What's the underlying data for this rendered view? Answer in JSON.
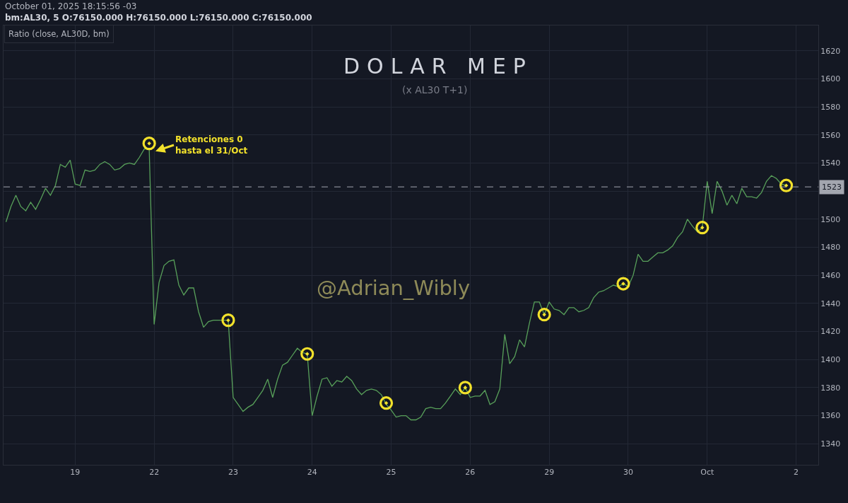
{
  "chart_data": {
    "type": "line",
    "title": "DOLAR MEP",
    "subtitle": "(x AL30 T+1)",
    "annotations": [
      "October 01, 2025 18:15:56 -03",
      "bm:AL30, 5 O:76150.000 H:76150.000 L:76150.000 C:76150.000",
      "Ratio (close, AL30D, bm)",
      "@Adrian_Wibly",
      "Retenciones 0\nhasta el 31/Oct"
    ],
    "categories": [
      null,
      null,
      null,
      null,
      null,
      null,
      null,
      null,
      null,
      null,
      null,
      null,
      null,
      null,
      "19",
      null,
      null,
      null,
      null,
      null,
      null,
      null,
      null,
      null,
      null,
      null,
      null,
      null,
      null,
      null,
      "22",
      null,
      null,
      null,
      null,
      null,
      null,
      null,
      null,
      null,
      null,
      null,
      null,
      null,
      null,
      null,
      "23",
      null,
      null,
      null,
      null,
      null,
      null,
      null,
      null,
      null,
      null,
      null,
      null,
      null,
      null,
      null,
      "24",
      null,
      null,
      null,
      null,
      null,
      null,
      null,
      null,
      null,
      null,
      null,
      null,
      null,
      null,
      null,
      "25",
      null,
      null,
      null,
      null,
      null,
      null,
      null,
      null,
      null,
      null,
      null,
      null,
      null,
      null,
      null,
      "26",
      null,
      null,
      null,
      null,
      null,
      null,
      null,
      null,
      null,
      null,
      null,
      null,
      null,
      null,
      null,
      "29",
      null,
      null,
      null,
      null,
      null,
      null,
      null,
      null,
      null,
      null,
      null,
      null,
      null,
      null,
      null,
      "30",
      null,
      null,
      null,
      null,
      null,
      null,
      null,
      null,
      null,
      null,
      null,
      null,
      null,
      null,
      null,
      "Oct",
      null,
      null,
      null,
      null,
      null,
      null,
      null,
      null,
      null,
      null,
      null,
      null,
      null,
      null,
      null,
      null,
      null,
      "2",
      null,
      null,
      null,
      null
    ],
    "ylim": [
      1325,
      1638
    ],
    "yticks": [
      1340,
      1360,
      1380,
      1400,
      1420,
      1440,
      1460,
      1480,
      1500,
      {
        "value": 1520,
        "label": null
      },
      1540,
      1560,
      1580,
      1600,
      1620
    ],
    "grid": true,
    "ref_lines": [
      {
        "axis": "y",
        "value": 1523,
        "label": "1523",
        "color": "#a3a6af",
        "line_style": "dashed"
      }
    ],
    "series": [
      {
        "color": "#58a05a",
        "values": [
          1498,
          1509,
          1517,
          1509,
          1506,
          1512,
          1507,
          1514,
          1522,
          1517,
          1524,
          1539,
          1537,
          1542,
          1525,
          1524,
          1535,
          1534,
          1535,
          1539,
          1541,
          1539,
          1535,
          1536,
          1539,
          1540,
          1539,
          1544,
          1550,
          1550,
          1425,
          1455,
          1467,
          1470,
          1471,
          1453,
          1446,
          1451,
          1451,
          1434,
          1423,
          1427,
          1428,
          1428,
          1428,
          1428,
          1373,
          1368,
          1363,
          1366,
          1368,
          1373,
          1378,
          1386,
          1373,
          1386,
          1396,
          1398,
          1403,
          1408,
          1405,
          1404,
          1360,
          1374,
          1386,
          1387,
          1381,
          1385,
          1384,
          1388,
          1385,
          1379,
          1375,
          1378,
          1379,
          1378,
          1375,
          1368,
          1364,
          1359,
          1360,
          1360,
          1357,
          1357,
          1359,
          1365,
          1366,
          1365,
          1365,
          1369,
          1374,
          1379,
          1375,
          1380,
          1373,
          1374,
          1374,
          1378,
          1368,
          1370,
          1379,
          1418,
          1397,
          1402,
          1414,
          1409,
          1426,
          1441,
          1441,
          1432,
          1441,
          1436,
          1435,
          1432,
          1437,
          1437,
          1434,
          1435,
          1437,
          1444,
          1448,
          1449,
          1451,
          1453,
          1452,
          1454,
          1452,
          1460,
          1475,
          1470,
          1470,
          1473,
          1476,
          1476,
          1478,
          1481,
          1487,
          1491,
          1500,
          1495,
          1491,
          1494,
          1527,
          1504,
          1527,
          1520,
          1510,
          1517,
          1511,
          1522,
          1516,
          1516,
          1515,
          1519,
          1527,
          1531,
          1529,
          1525,
          1524,
          null,
          null,
          null,
          null,
          null,
          null
        ]
      },
      {
        "type": "scatter",
        "color": "#f2e12b",
        "marker": "circle",
        "values": [
          null,
          null,
          null,
          null,
          null,
          null,
          null,
          null,
          null,
          null,
          null,
          null,
          null,
          null,
          null,
          null,
          null,
          null,
          null,
          null,
          null,
          null,
          null,
          null,
          null,
          null,
          null,
          null,
          null,
          1554,
          null,
          null,
          null,
          null,
          null,
          null,
          null,
          null,
          null,
          null,
          null,
          null,
          null,
          null,
          null,
          1428,
          null,
          null,
          null,
          null,
          null,
          null,
          null,
          null,
          null,
          null,
          null,
          null,
          null,
          null,
          null,
          1404,
          null,
          null,
          null,
          null,
          null,
          null,
          null,
          null,
          null,
          null,
          null,
          null,
          null,
          null,
          null,
          1369,
          null,
          null,
          null,
          null,
          null,
          null,
          null,
          null,
          null,
          null,
          null,
          null,
          null,
          null,
          null,
          1380,
          null,
          null,
          null,
          null,
          null,
          null,
          null,
          null,
          null,
          null,
          null,
          null,
          null,
          null,
          null,
          1432,
          null,
          null,
          null,
          null,
          null,
          null,
          null,
          null,
          null,
          null,
          null,
          null,
          null,
          null,
          null,
          1454,
          null,
          null,
          null,
          null,
          null,
          null,
          null,
          null,
          null,
          null,
          null,
          null,
          null,
          null,
          null,
          1494,
          null,
          null,
          null,
          null,
          null,
          null,
          null,
          null,
          null,
          null,
          null,
          null,
          null,
          null,
          null,
          null,
          1524,
          null,
          null,
          null,
          null,
          null,
          null
        ]
      }
    ]
  }
}
